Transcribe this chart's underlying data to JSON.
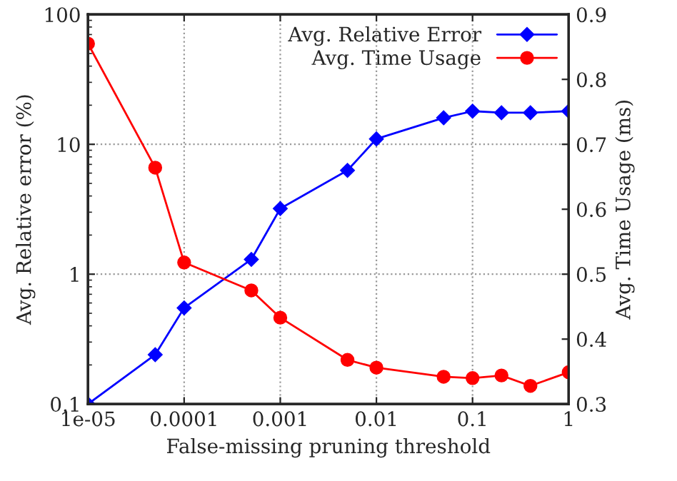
{
  "chart_data": {
    "type": "line",
    "xlabel": "False-missing pruning threshold",
    "ylabel": "Avg. Relative error (%)",
    "y2label": "Avg. Time Usage (ms)",
    "x": [
      1e-05,
      5e-05,
      0.0001,
      0.0005,
      0.001,
      0.005,
      0.01,
      0.05,
      0.1,
      0.2,
      0.4,
      1
    ],
    "series": [
      {
        "name": "Avg. Relative Error",
        "color": "#0000ff",
        "marker": "diamond",
        "values": [
          0.1,
          0.24,
          0.55,
          1.3,
          3.2,
          6.3,
          11,
          16,
          18,
          17.5,
          17.5,
          18
        ]
      },
      {
        "name": "Avg. Time Usage",
        "color": "#ff0000",
        "marker": "circle",
        "axis": "y2",
        "values": [
          0.855,
          0.664,
          0.518,
          0.475,
          0.433,
          0.368,
          0.356,
          0.342,
          0.34,
          0.344,
          0.328,
          0.349
        ]
      }
    ],
    "log": "xy",
    "xlim": [
      1e-05,
      1
    ],
    "xticks": [
      {
        "value": 1e-05,
        "label": "1e-05"
      },
      0.0001,
      0.001,
      0.01,
      0.1,
      1
    ],
    "ylim": [
      0.1,
      100
    ],
    "yticks": [
      0.1,
      1,
      10,
      100
    ],
    "y2lim": [
      0.3,
      0.9
    ],
    "y2ticks": [
      0.3,
      0.4,
      0.5,
      0.6,
      0.7,
      0.8,
      0.9
    ],
    "grid": true,
    "legend": "top right",
    "line_style": "solid"
  }
}
